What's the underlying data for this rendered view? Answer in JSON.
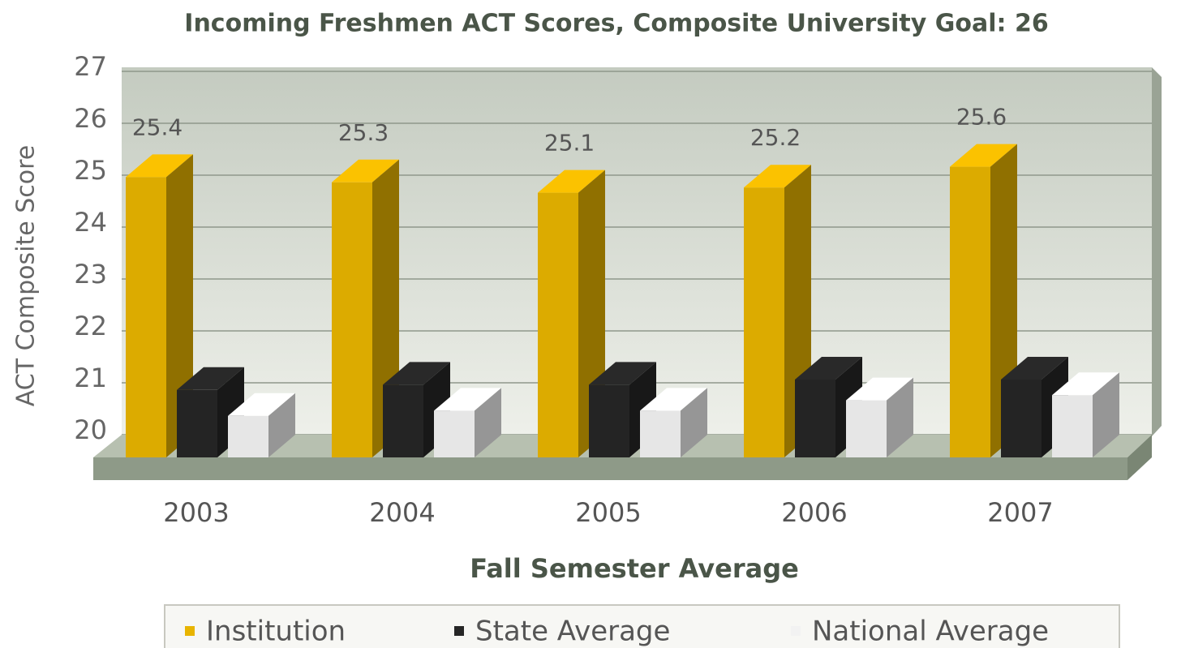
{
  "chart_data": {
    "type": "bar3d",
    "title": "Incoming Freshmen ACT Scores, Composite University Goal: 26",
    "x_label": "Fall Semester Average",
    "y_label": "ACT Composite Score",
    "categories": [
      "2003",
      "2004",
      "2005",
      "2006",
      "2007"
    ],
    "series": [
      {
        "name": "Institution",
        "color": "#e8b400",
        "values": [
          25.4,
          25.3,
          25.1,
          25.2,
          25.6
        ]
      },
      {
        "name": "State Average",
        "color": "#262626",
        "values": [
          21.3,
          21.4,
          21.4,
          21.5,
          21.5
        ]
      },
      {
        "name": "National Average",
        "color": "#f2f2f2",
        "values": [
          20.8,
          20.9,
          20.9,
          21.1,
          21.2
        ]
      }
    ],
    "ylim": [
      20,
      27
    ],
    "yticks": [
      20,
      21,
      22,
      23,
      24,
      25,
      26,
      27
    ],
    "grid": true,
    "legend": "bottom"
  }
}
